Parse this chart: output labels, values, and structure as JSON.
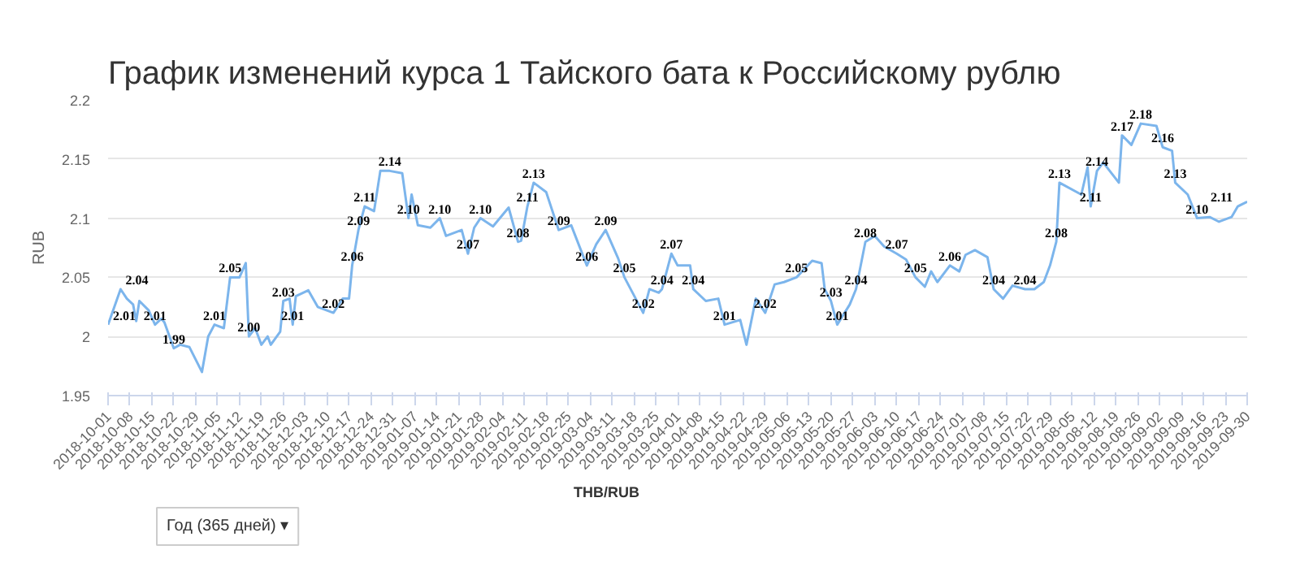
{
  "chart_data": {
    "type": "line",
    "title": "График изменений курса 1 Тайского бата к Российскому рублю",
    "ylabel": "RUB",
    "annotations": [
      "Год (365 дней) ▾"
    ],
    "xlim": [
      "2018-10-01",
      "2019-09-30"
    ],
    "xticks": [
      "2018-10-01",
      "2018-10-08",
      "2018-10-15",
      "2018-10-22",
      "2018-10-29",
      "2018-11-05",
      "2018-11-12",
      "2018-11-19",
      "2018-11-26",
      "2018-12-03",
      "2018-12-10",
      "2018-12-17",
      "2018-12-24",
      "2018-12-31",
      "2019-01-07",
      "2019-01-14",
      "2019-01-21",
      "2019-01-28",
      "2019-02-04",
      "2019-02-11",
      "2019-02-18",
      "2019-02-25",
      "2019-03-04",
      "2019-03-11",
      "2019-03-18",
      "2019-03-25",
      "2019-04-01",
      "2019-04-08",
      "2019-04-15",
      "2019-04-22",
      "2019-04-29",
      "2019-05-06",
      "2019-05-13",
      "2019-05-20",
      "2019-05-27",
      "2019-06-03",
      "2019-06-10",
      "2019-06-17",
      "2019-06-24",
      "2019-07-01",
      "2019-07-08",
      "2019-07-15",
      "2019-07-22",
      "2019-07-29",
      "2019-08-05",
      "2019-08-12",
      "2019-08-19",
      "2019-08-26",
      "2019-09-02",
      "2019-09-09",
      "2019-09-16",
      "2019-09-23",
      "2019-09-30"
    ],
    "ylim": [
      1.95,
      2.2
    ],
    "yticks": [
      1.95,
      2,
      2.05,
      2.1,
      2.15,
      2.2
    ],
    "grid": "y",
    "legend": "bottom",
    "x": [
      "2018-10-01",
      "2018-10-05",
      "2018-10-07",
      "2018-10-09",
      "2018-10-10",
      "2018-10-11",
      "2018-10-14",
      "2018-10-16",
      "2018-10-18",
      "2018-10-19",
      "2018-10-22",
      "2018-10-24",
      "2018-10-27",
      "2018-10-31",
      "2018-11-02",
      "2018-11-04",
      "2018-11-07",
      "2018-11-09",
      "2018-11-12",
      "2018-11-14",
      "2018-11-15",
      "2018-11-17",
      "2018-11-19",
      "2018-11-21",
      "2018-11-22",
      "2018-11-25",
      "2018-11-26",
      "2018-11-28",
      "2018-11-29",
      "2018-11-30",
      "2018-12-04",
      "2018-12-07",
      "2018-12-12",
      "2018-12-15",
      "2018-12-17",
      "2018-12-18",
      "2018-12-20",
      "2018-12-22",
      "2018-12-25",
      "2018-12-27",
      "2018-12-30",
      "2019-01-03",
      "2019-01-05",
      "2019-01-06",
      "2019-01-08",
      "2019-01-12",
      "2019-01-15",
      "2019-01-17",
      "2019-01-22",
      "2019-01-24",
      "2019-01-26",
      "2019-01-28",
      "2019-02-01",
      "2019-02-06",
      "2019-02-09",
      "2019-02-10",
      "2019-02-12",
      "2019-02-14",
      "2019-02-18",
      "2019-02-22",
      "2019-02-26",
      "2019-03-03",
      "2019-03-06",
      "2019-03-09",
      "2019-03-13",
      "2019-03-15",
      "2019-03-21",
      "2019-03-23",
      "2019-03-26",
      "2019-03-27",
      "2019-03-30",
      "2019-04-01",
      "2019-04-05",
      "2019-04-06",
      "2019-04-10",
      "2019-04-14",
      "2019-04-16",
      "2019-04-21",
      "2019-04-23",
      "2019-04-26",
      "2019-04-29",
      "2019-05-02",
      "2019-05-05",
      "2019-05-09",
      "2019-05-14",
      "2019-05-17",
      "2019-05-18",
      "2019-05-20",
      "2019-05-22",
      "2019-05-26",
      "2019-05-28",
      "2019-05-31",
      "2019-06-03",
      "2019-06-06",
      "2019-06-10",
      "2019-06-13",
      "2019-06-16",
      "2019-06-19",
      "2019-06-21",
      "2019-06-23",
      "2019-06-27",
      "2019-06-30",
      "2019-07-02",
      "2019-07-05",
      "2019-07-09",
      "2019-07-11",
      "2019-07-14",
      "2019-07-17",
      "2019-07-21",
      "2019-07-24",
      "2019-07-27",
      "2019-07-29",
      "2019-07-31",
      "2019-08-01",
      "2019-08-08",
      "2019-08-10",
      "2019-08-11",
      "2019-08-13",
      "2019-08-15",
      "2019-08-20",
      "2019-08-21",
      "2019-08-24",
      "2019-08-27",
      "2019-09-01",
      "2019-09-03",
      "2019-09-06",
      "2019-09-07",
      "2019-09-11",
      "2019-09-14",
      "2019-09-18",
      "2019-09-21",
      "2019-09-25",
      "2019-09-27",
      "2019-09-30"
    ],
    "series": [
      {
        "name": "THB/RUB",
        "color": "#7cb5ec",
        "values": [
          2.01,
          2.04,
          2.032,
          2.027,
          2.013,
          2.03,
          2.022,
          2.01,
          2.015,
          2.012,
          1.99,
          1.993,
          1.991,
          1.97,
          2.0,
          2.01,
          2.007,
          2.05,
          2.05,
          2.062,
          2.0,
          2.007,
          1.993,
          2.0,
          1.993,
          2.004,
          2.03,
          2.032,
          2.01,
          2.034,
          2.039,
          2.025,
          2.02,
          2.032,
          2.032,
          2.06,
          2.09,
          2.11,
          2.106,
          2.14,
          2.14,
          2.138,
          2.1,
          2.12,
          2.094,
          2.092,
          2.1,
          2.085,
          2.09,
          2.07,
          2.092,
          2.1,
          2.093,
          2.109,
          2.08,
          2.081,
          2.11,
          2.13,
          2.122,
          2.09,
          2.094,
          2.06,
          2.078,
          2.09,
          2.066,
          2.05,
          2.02,
          2.04,
          2.037,
          2.04,
          2.07,
          2.06,
          2.06,
          2.04,
          2.03,
          2.032,
          2.01,
          2.014,
          1.993,
          2.032,
          2.02,
          2.044,
          2.046,
          2.05,
          2.064,
          2.062,
          2.04,
          2.03,
          2.01,
          2.027,
          2.04,
          2.08,
          2.085,
          2.076,
          2.07,
          2.065,
          2.05,
          2.042,
          2.055,
          2.046,
          2.06,
          2.055,
          2.069,
          2.073,
          2.067,
          2.04,
          2.032,
          2.043,
          2.04,
          2.04,
          2.046,
          2.06,
          2.08,
          2.13,
          2.12,
          2.143,
          2.11,
          2.14,
          2.147,
          2.13,
          2.17,
          2.162,
          2.18,
          2.178,
          2.16,
          2.157,
          2.13,
          2.12,
          2.1,
          2.101,
          2.097,
          2.101,
          2.11,
          2.114
        ],
        "value_labels": [
          "2.01",
          "2.04",
          null,
          null,
          null,
          null,
          null,
          "2.01",
          null,
          null,
          "1.99",
          null,
          null,
          null,
          null,
          "2.01",
          null,
          "2.05",
          null,
          null,
          "2.00",
          null,
          null,
          null,
          null,
          null,
          "2.03",
          null,
          "2.01",
          null,
          null,
          null,
          "2.02",
          null,
          null,
          "2.06",
          "2.09",
          "2.11",
          null,
          null,
          "2.14",
          null,
          "2.10",
          null,
          null,
          null,
          "2.10",
          null,
          null,
          "2.07",
          null,
          "2.10",
          null,
          null,
          "2.08",
          null,
          "2.11",
          "2.13",
          null,
          "2.09",
          null,
          "2.06",
          null,
          "2.09",
          null,
          "2.05",
          "2.02",
          null,
          null,
          "2.04",
          "2.07",
          null,
          null,
          "2.04",
          null,
          null,
          "2.01",
          null,
          null,
          null,
          "2.02",
          null,
          null,
          "2.05",
          null,
          null,
          null,
          "2.03",
          "2.01",
          null,
          "2.04",
          "2.08",
          null,
          null,
          "2.07",
          null,
          "2.05",
          null,
          null,
          null,
          "2.06",
          null,
          null,
          null,
          null,
          "2.04",
          null,
          null,
          "2.04",
          null,
          null,
          null,
          "2.08",
          "2.13",
          null,
          null,
          "2.11",
          "2.14",
          null,
          null,
          "2.17",
          null,
          "2.18",
          null,
          "2.16",
          null,
          "2.13",
          null,
          "2.10",
          null,
          null,
          null,
          "2.11",
          null
        ]
      }
    ]
  }
}
